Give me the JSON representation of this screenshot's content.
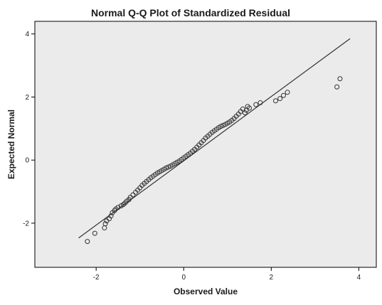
{
  "chart_data": {
    "type": "scatter",
    "title": "Normal Q-Q Plot of Standardized Residual",
    "xlabel": "Observed Value",
    "ylabel": "Expected Normal",
    "xlim": [
      -3.4,
      4.4
    ],
    "ylim": [
      -3.4,
      4.4
    ],
    "xticks": [
      -2,
      0,
      2,
      4
    ],
    "yticks": [
      -2,
      0,
      2,
      4
    ],
    "grid": false,
    "plot_background": "#ebebeb",
    "point_color": "#333333",
    "reference_line": {
      "x": [
        -2.4,
        3.8
      ],
      "y": [
        -2.47,
        3.85
      ]
    },
    "series": [
      {
        "x": [
          -2.2,
          -2.03,
          -1.81,
          -1.79,
          -1.76,
          -1.7,
          -1.66,
          -1.63,
          -1.58,
          -1.55,
          -1.5,
          -1.43,
          -1.38,
          -1.34,
          -1.3,
          -1.25,
          -1.22,
          -1.16,
          -1.1,
          -1.05,
          -1.0,
          -0.95,
          -0.9,
          -0.85,
          -0.8,
          -0.75,
          -0.7,
          -0.65,
          -0.6,
          -0.55,
          -0.5,
          -0.45,
          -0.4,
          -0.35,
          -0.3,
          -0.25,
          -0.2,
          -0.15,
          -0.1,
          -0.05,
          0.0,
          0.05,
          0.1,
          0.15,
          0.2,
          0.25,
          0.3,
          0.35,
          0.4,
          0.45,
          0.5,
          0.55,
          0.6,
          0.65,
          0.7,
          0.75,
          0.8,
          0.85,
          0.9,
          0.95,
          1.0,
          1.05,
          1.1,
          1.15,
          1.2,
          1.25,
          1.3,
          1.35,
          1.4,
          1.43,
          1.46,
          1.5,
          1.65,
          1.75,
          2.1,
          2.2,
          2.28,
          2.37,
          3.5,
          3.57
        ],
        "y": [
          -2.58,
          -2.32,
          -2.15,
          -2.02,
          -1.93,
          -1.86,
          -1.77,
          -1.67,
          -1.6,
          -1.55,
          -1.5,
          -1.45,
          -1.41,
          -1.36,
          -1.3,
          -1.25,
          -1.18,
          -1.1,
          -1.02,
          -0.95,
          -0.88,
          -0.8,
          -0.74,
          -0.68,
          -0.62,
          -0.56,
          -0.51,
          -0.46,
          -0.41,
          -0.37,
          -0.33,
          -0.29,
          -0.25,
          -0.22,
          -0.19,
          -0.15,
          -0.11,
          -0.07,
          -0.03,
          0.02,
          0.07,
          0.12,
          0.17,
          0.22,
          0.28,
          0.34,
          0.41,
          0.48,
          0.55,
          0.62,
          0.7,
          0.76,
          0.82,
          0.88,
          0.93,
          0.98,
          1.03,
          1.07,
          1.1,
          1.13,
          1.17,
          1.21,
          1.26,
          1.32,
          1.39,
          1.46,
          1.54,
          1.62,
          1.5,
          1.58,
          1.7,
          1.65,
          1.76,
          1.82,
          1.88,
          1.95,
          2.05,
          2.15,
          2.32,
          2.58
        ]
      }
    ]
  }
}
